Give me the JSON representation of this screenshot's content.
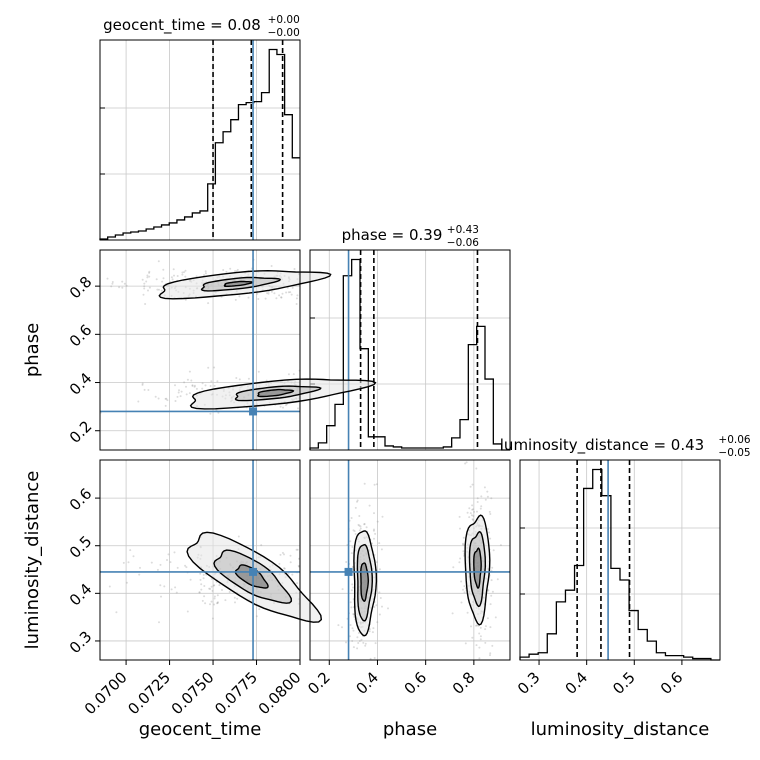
{
  "chart_data": {
    "type": "corner",
    "parameters": [
      "geocent_time",
      "phase",
      "luminosity_distance"
    ],
    "axis_labels": [
      "geocent_time",
      "phase",
      "luminosity_distance"
    ],
    "truth_color": "#4682b4",
    "grid": true,
    "ranges": {
      "geocent_time": [
        0.0685,
        0.08
      ],
      "phase": [
        0.12,
        0.95
      ],
      "luminosity_distance": [
        0.26,
        0.68
      ]
    },
    "ticks": {
      "geocent_time": [
        "0.0700",
        "0.0725",
        "0.0750",
        "0.0775",
        "0.0800"
      ],
      "phase_x": [
        "0.2",
        "0.4",
        "0.6",
        "0.8"
      ],
      "phase_y": [
        "0.2",
        "0.4",
        "0.6",
        "0.8"
      ],
      "luminosity_distance_x": [
        "0.3",
        "0.4",
        "0.5",
        "0.6"
      ],
      "luminosity_distance_y": [
        "0.3",
        "0.4",
        "0.5",
        "0.6"
      ]
    },
    "titles": [
      {
        "param": "geocent_time",
        "label": "geocent_time = 0.08",
        "plus": "+0.00",
        "minus": "−0.00"
      },
      {
        "param": "phase",
        "label": "phase = 0.39",
        "plus": "+0.43",
        "minus": "−0.06"
      },
      {
        "param": "luminosity_distance",
        "label": "luminosity_distance = 0.43",
        "plus": "+0.06",
        "minus": "−0.05"
      }
    ],
    "truths": {
      "geocent_time": 0.0773,
      "phase": 0.28,
      "luminosity_distance": 0.445
    },
    "quantiles": {
      "geocent_time": [
        0.075,
        0.0772,
        0.079
      ],
      "phase": [
        0.33,
        0.385,
        0.815
      ],
      "luminosity_distance": [
        0.38,
        0.43,
        0.49
      ]
    },
    "histograms": {
      "geocent_time": {
        "range": [
          0.0685,
          0.08
        ],
        "counts": [
          1,
          3,
          5,
          7,
          8,
          9,
          11,
          13,
          15,
          17,
          20,
          23,
          27,
          29,
          56,
          97,
          108,
          120,
          135,
          137,
          138,
          147,
          190,
          185,
          125,
          82
        ]
      },
      "phase": {
        "range": [
          0.12,
          0.95
        ],
        "counts": [
          2,
          7,
          24,
          45,
          172,
          188,
          100,
          13,
          13,
          4,
          3,
          2,
          2,
          2,
          2,
          2,
          3,
          12,
          30,
          104,
          122,
          70,
          6,
          0
        ]
      },
      "luminosity_distance": {
        "range": [
          0.26,
          0.68
        ],
        "counts": [
          2,
          4,
          5,
          18,
          40,
          48,
          65,
          118,
          131,
          113,
          63,
          55,
          34,
          21,
          13,
          5,
          3,
          3,
          2,
          1,
          1,
          0
        ]
      }
    },
    "contours_geocent_time_vs_phase": [
      {
        "center": [
          0.0764,
          0.81
        ],
        "levels": [
          [
            0.0048,
            0.045
          ],
          [
            0.0022,
            0.022
          ],
          [
            0.0008,
            0.008
          ]
        ]
      },
      {
        "center": [
          0.0785,
          0.357
        ],
        "levels": [
          [
            0.0052,
            0.048
          ],
          [
            0.0024,
            0.024
          ],
          [
            0.001,
            0.012
          ]
        ]
      }
    ],
    "contours_geocent_time_vs_luminosity_distance": [
      {
        "center": [
          0.0772,
          0.435
        ],
        "levels": [
          [
            0.0042,
            0.048
          ],
          [
            0.0024,
            0.032
          ],
          [
            0.001,
            0.016
          ]
        ]
      }
    ],
    "contours_phase_vs_luminosity_distance": [
      {
        "center": [
          0.345,
          0.425
        ],
        "levels": [
          [
            0.045,
            0.11
          ],
          [
            0.03,
            0.08
          ],
          [
            0.015,
            0.04
          ]
        ]
      },
      {
        "center": [
          0.815,
          0.455
        ],
        "levels": [
          [
            0.05,
            0.11
          ],
          [
            0.032,
            0.075
          ],
          [
            0.015,
            0.04
          ]
        ]
      }
    ]
  }
}
